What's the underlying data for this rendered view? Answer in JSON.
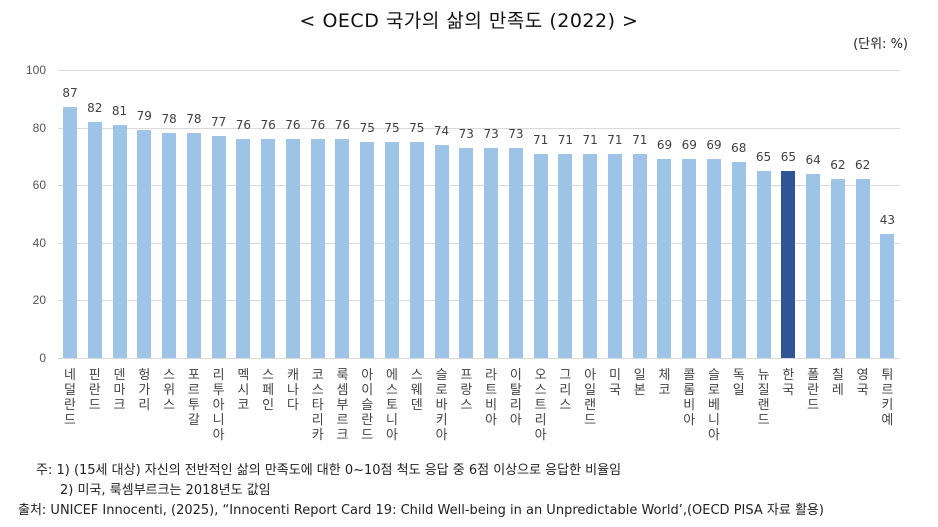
{
  "title": "< OECD 국가의 삶의 만족도 (2022) >",
  "unit_label": "(단위: %)",
  "chart_data": {
    "type": "bar",
    "title": "OECD 국가의 삶의 만족도 (2022)",
    "xlabel": "",
    "ylabel": "%",
    "ylim": [
      0,
      100
    ],
    "yticks": [
      0,
      20,
      40,
      60,
      80,
      100
    ],
    "grid": true,
    "legend": null,
    "highlight": {
      "category": "한국",
      "color": "#2F5597"
    },
    "bar_color": "#9DC3E6",
    "categories": [
      "네덜란드",
      "핀란드",
      "덴마크",
      "헝가리",
      "스위스",
      "포르투갈",
      "리투아니아",
      "멕시코",
      "스페인",
      "캐나다",
      "코스타리카",
      "룩셈부르크",
      "아이슬란드",
      "에스토니아",
      "스웨덴",
      "슬로바키아",
      "프랑스",
      "라트비아",
      "이탈리아",
      "오스트리아",
      "그리스",
      "아일랜드",
      "미국",
      "일본",
      "체코",
      "콜롬비아",
      "슬로베니아",
      "독일",
      "뉴질랜드",
      "한국",
      "폴란드",
      "칠레",
      "영국",
      "튀르키예"
    ],
    "values": [
      87,
      82,
      81,
      79,
      78,
      78,
      77,
      76,
      76,
      76,
      76,
      76,
      75,
      75,
      75,
      74,
      73,
      73,
      73,
      71,
      71,
      71,
      71,
      71,
      69,
      69,
      69,
      68,
      65,
      65,
      64,
      62,
      62,
      43
    ]
  },
  "notes": {
    "note1": "주: 1) (15세 대상) 자신의 전반적인 삶의 만족도에 대한 0~10점 척도 응답 중 6점 이상으로 응답한 비율임",
    "note2": "2) 미국, 룩셈부르크는 2018년도 값임",
    "source": "출처: UNICEF Innocenti, (2025), “Innocenti Report Card 19: Child Well-being in an Unpredictable World’,(OECD PISA 자료 활용)"
  }
}
